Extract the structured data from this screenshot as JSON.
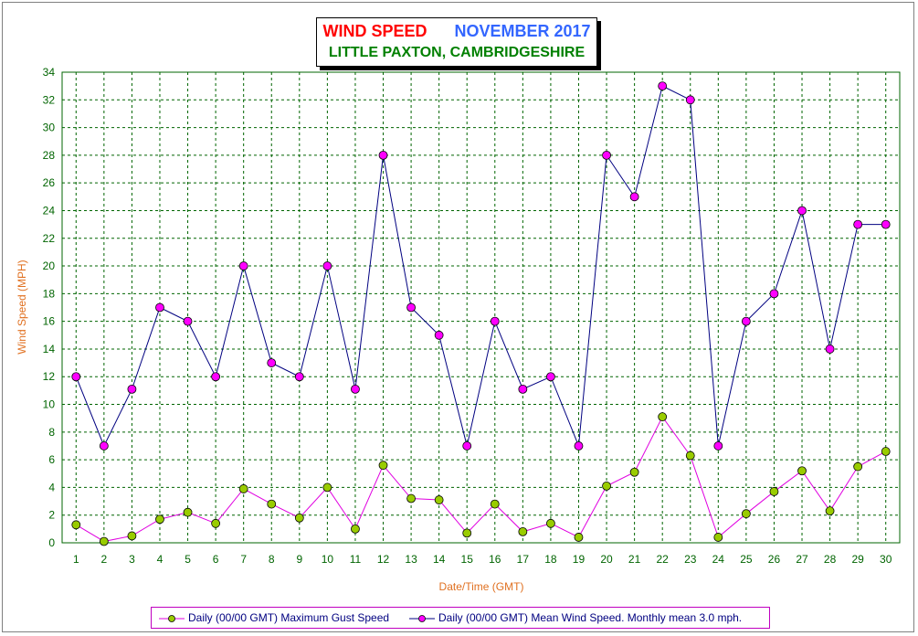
{
  "title": {
    "part1": "WIND SPEED",
    "part2": "NOVEMBER 2017",
    "subtitle": "LITTLE PAXTON, CAMBRIDGESHIRE"
  },
  "colors": {
    "title_red": "#ff0000",
    "title_blue": "#3366ff",
    "subtitle_green": "#008000",
    "grid": "#006400",
    "axis_label": "#e07020",
    "gust_line": "#e000e0",
    "gust_marker": "#99cc00",
    "mean_line": "#000080",
    "mean_marker": "#ff00ff"
  },
  "legend": {
    "gust": "Daily (00/00 GMT) Maximum Gust Speed",
    "mean": "Daily (00/00 GMT) Mean Wind Speed. Monthly mean 3.0 mph."
  },
  "chart_data": {
    "type": "line",
    "xlabel": "Date/Time (GMT)",
    "ylabel": "Wind Speed (MPH)",
    "ylim": [
      0,
      34
    ],
    "yticks": [
      0,
      2,
      4,
      6,
      8,
      10,
      12,
      14,
      16,
      18,
      20,
      22,
      24,
      26,
      28,
      30,
      32,
      34
    ],
    "x": [
      1,
      2,
      3,
      4,
      5,
      6,
      7,
      8,
      9,
      10,
      11,
      12,
      13,
      14,
      15,
      16,
      17,
      18,
      19,
      20,
      21,
      22,
      23,
      24,
      25,
      26,
      27,
      28,
      29,
      30
    ],
    "grid": true,
    "legend_position": "bottom",
    "series": [
      {
        "name": "Daily (00/00 GMT) Maximum Gust Speed",
        "values": [
          12,
          7,
          11.1,
          17,
          16,
          12,
          20,
          13,
          12,
          20,
          11.1,
          28,
          17,
          15,
          7,
          16,
          11.1,
          12,
          7,
          28,
          25,
          33,
          32,
          7,
          16,
          18,
          24,
          14,
          23,
          23
        ]
      },
      {
        "name": "Daily (00/00 GMT) Mean Wind Speed. Monthly mean 3.0 mph.",
        "values": [
          1.3,
          0.1,
          0.5,
          1.7,
          2.2,
          1.4,
          3.9,
          2.8,
          1.8,
          4.0,
          1.0,
          5.6,
          3.2,
          3.1,
          0.7,
          2.8,
          0.8,
          1.4,
          0.4,
          4.1,
          5.1,
          9.1,
          6.3,
          0.4,
          2.1,
          3.7,
          5.2,
          2.3,
          5.5,
          6.6
        ]
      }
    ]
  }
}
